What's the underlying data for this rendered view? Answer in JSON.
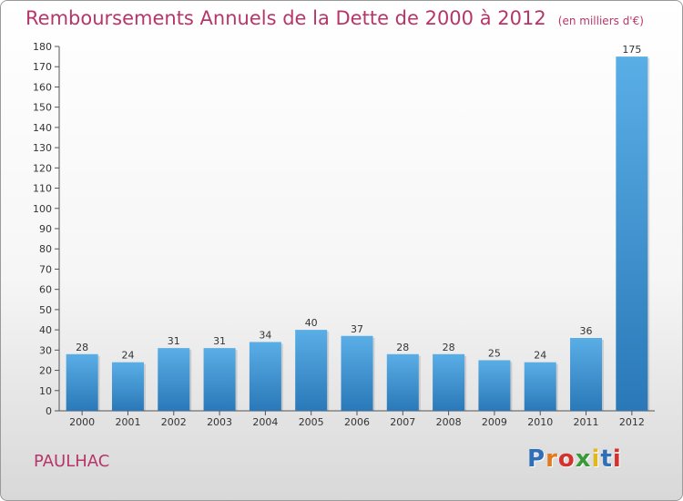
{
  "header": {
    "title": "Remboursements Annuels de la Dette de 2000 à 2012",
    "unit": "(en milliers d'€)"
  },
  "footer": {
    "commune": "PAULHAC",
    "logo": "Proxiti",
    "logo_colors": [
      "#2f6fb7",
      "#e07b1f",
      "#d4302c",
      "#3a9a3a",
      "#e0b91f",
      "#2f6fb7",
      "#d4302c"
    ]
  },
  "chart_data": {
    "type": "bar",
    "categories": [
      "2000",
      "2001",
      "2002",
      "2003",
      "2004",
      "2005",
      "2006",
      "2007",
      "2008",
      "2009",
      "2010",
      "2011",
      "2012"
    ],
    "values": [
      28,
      24,
      31,
      31,
      34,
      40,
      37,
      28,
      28,
      25,
      24,
      36,
      175
    ],
    "ylim": [
      0,
      180
    ],
    "yticks": [
      0,
      10,
      20,
      30,
      40,
      50,
      60,
      70,
      80,
      90,
      100,
      110,
      120,
      130,
      140,
      150,
      160,
      170,
      180
    ],
    "grid": false,
    "bar_color": "#3f94d6",
    "bar_color_light": "#5aaee6",
    "bar_color_dark": "#2a78b8"
  }
}
